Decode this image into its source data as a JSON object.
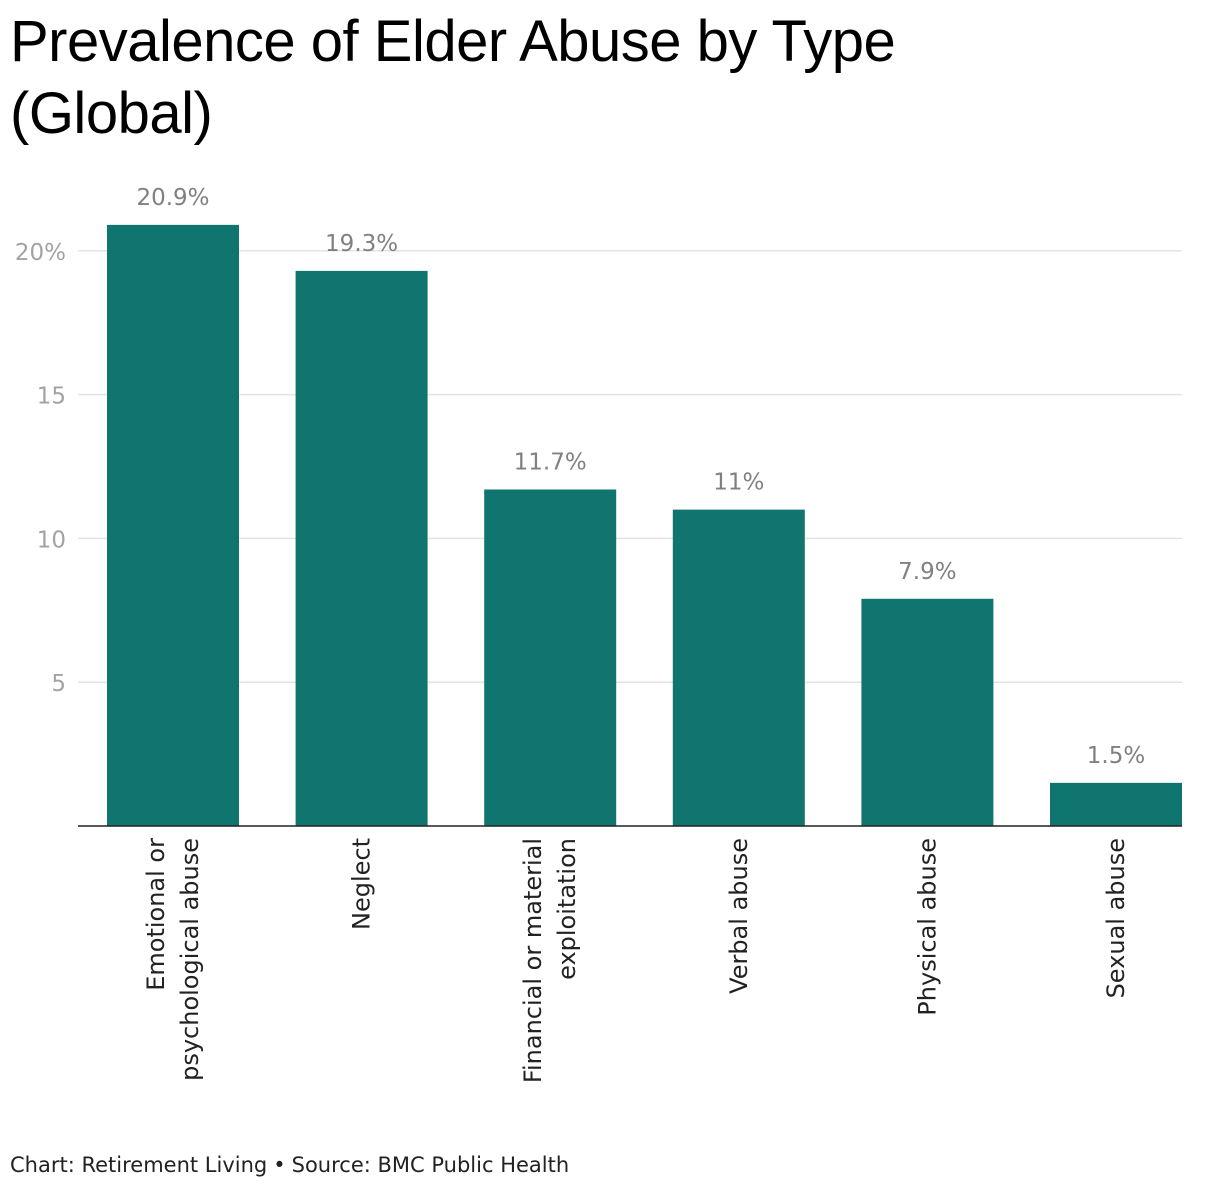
{
  "chart_data": {
    "type": "bar",
    "title": "Prevalence of Elder Abuse by Type (Global)",
    "categories": [
      [
        "Emotional or",
        "psychological abuse"
      ],
      [
        "Neglect"
      ],
      [
        "Financial or material",
        "exploitation"
      ],
      [
        "Verbal abuse"
      ],
      [
        "Physical abuse"
      ],
      [
        "Sexual abuse"
      ]
    ],
    "values": [
      20.9,
      19.3,
      11.7,
      11,
      7.9,
      1.5
    ],
    "value_labels": [
      "20.9%",
      "19.3%",
      "11.7%",
      "11%",
      "7.9%",
      "1.5%"
    ],
    "yticks": [
      5,
      10,
      15,
      20
    ],
    "ytick_labels": [
      "5",
      "10",
      "15",
      "20%"
    ],
    "ylim": [
      0,
      22
    ],
    "xlabel": "",
    "ylabel": "",
    "grid": true,
    "bar_color": "#10756f"
  },
  "footer": {
    "chart_credit": "Chart: Retirement Living",
    "separator": "•",
    "source": "Source: BMC Public Health"
  }
}
